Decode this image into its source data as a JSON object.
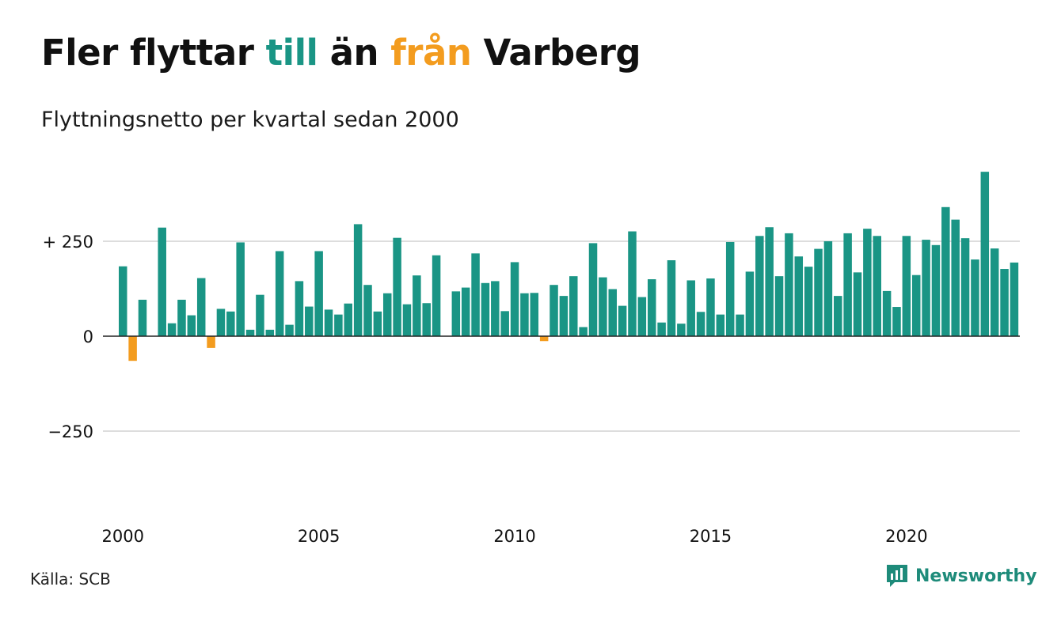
{
  "title": {
    "part1": "Fler flyttar ",
    "part2": "till",
    "part3": " än ",
    "part4": "från",
    "part5": " Varberg"
  },
  "subtitle": "Flyttningsnetto per kvartal sedan 2000",
  "source": "Källa: SCB",
  "brand": "Newsworthy",
  "colors": {
    "positive": "#1a9585",
    "negative": "#f39c1f",
    "grid": "#dddddd",
    "title_till": "#1a9585",
    "title_fran": "#f39c1f"
  },
  "chart_data": {
    "type": "bar",
    "x_start": "2000 Q1",
    "x_ticks": [
      {
        "label": "2000",
        "index": 0
      },
      {
        "label": "2005",
        "index": 20
      },
      {
        "label": "2010",
        "index": 40
      },
      {
        "label": "2015",
        "index": 60
      },
      {
        "label": "2020",
        "index": 80
      }
    ],
    "y_ticks": [
      {
        "label": "+ 250",
        "value": 250
      },
      {
        "label": "0",
        "value": 0
      },
      {
        "label": "−250",
        "value": -250
      }
    ],
    "ylim": [
      -480,
      430
    ],
    "grid": true,
    "values": [
      184,
      -65,
      96,
      0,
      286,
      34,
      96,
      55,
      153,
      -31,
      72,
      65,
      247,
      17,
      109,
      17,
      224,
      30,
      145,
      78,
      224,
      70,
      57,
      86,
      295,
      135,
      65,
      113,
      259,
      84,
      160,
      87,
      213,
      0,
      118,
      128,
      218,
      140,
      145,
      66,
      195,
      113,
      114,
      -13,
      135,
      106,
      158,
      24,
      245,
      155,
      124,
      80,
      276,
      103,
      150,
      36,
      200,
      33,
      147,
      64,
      152,
      57,
      248,
      57,
      170,
      264,
      287,
      158,
      271,
      210,
      183,
      230,
      250,
      106,
      271,
      168,
      283,
      264,
      119,
      77,
      264,
      161,
      254,
      240,
      340,
      307,
      258,
      202,
      433,
      231,
      177,
      194
    ]
  }
}
